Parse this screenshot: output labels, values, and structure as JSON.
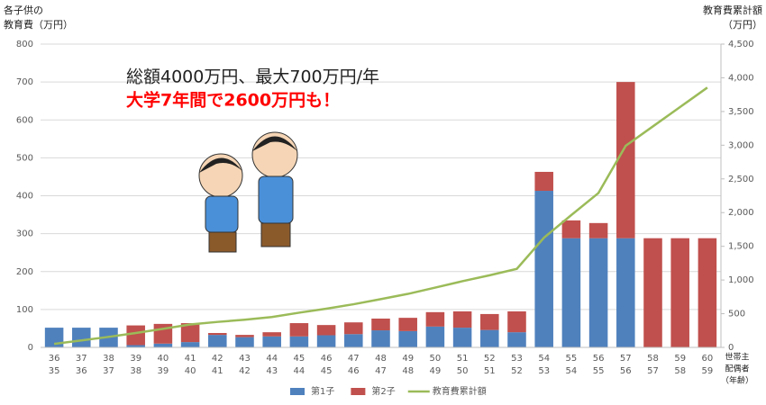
{
  "chart_data": {
    "type": "bar_line",
    "ylabel": [
      "各子供の",
      "教育費（万円）"
    ],
    "y2label": [
      "教育費累計額",
      "（万円）"
    ],
    "xlabel": [
      "世帯主",
      "配偶者",
      "（年齢）"
    ],
    "annotations": [
      {
        "text": "総額4000万円、最大700万円/年",
        "color": "#222222"
      },
      {
        "text": "大学7年間で2600万円も！",
        "color": "#ff0000"
      }
    ],
    "categories": [
      [
        "36",
        "35"
      ],
      [
        "37",
        "36"
      ],
      [
        "38",
        "37"
      ],
      [
        "39",
        "38"
      ],
      [
        "40",
        "39"
      ],
      [
        "41",
        "40"
      ],
      [
        "42",
        "41"
      ],
      [
        "43",
        "42"
      ],
      [
        "44",
        "43"
      ],
      [
        "45",
        "44"
      ],
      [
        "46",
        "45"
      ],
      [
        "47",
        "46"
      ],
      [
        "48",
        "47"
      ],
      [
        "49",
        "48"
      ],
      [
        "50",
        "49"
      ],
      [
        "51",
        "50"
      ],
      [
        "52",
        "51"
      ],
      [
        "53",
        "52"
      ],
      [
        "54",
        "53"
      ],
      [
        "55",
        "54"
      ],
      [
        "56",
        "55"
      ],
      [
        "57",
        "56"
      ],
      [
        "58",
        "57"
      ],
      [
        "59",
        "58"
      ],
      [
        "60",
        "59"
      ]
    ],
    "series": [
      {
        "name": "第1子",
        "type": "bar",
        "color": "#4f81bd",
        "values": [
          52,
          52,
          52,
          6,
          10,
          14,
          33,
          27,
          29,
          29,
          32,
          35,
          45,
          43,
          55,
          52,
          46,
          40,
          413,
          288,
          288,
          288,
          0,
          0,
          0
        ]
      },
      {
        "name": "第2子",
        "type": "bar",
        "color": "#c0504d",
        "values": [
          0,
          0,
          0,
          52,
          52,
          50,
          5,
          6,
          11,
          35,
          27,
          31,
          31,
          35,
          38,
          43,
          42,
          55,
          50,
          47,
          40,
          412,
          288,
          288,
          288
        ]
      },
      {
        "name": "教育費累計額",
        "type": "line",
        "axis": "y2",
        "color": "#9bbb59",
        "values": [
          52,
          104,
          156,
          214,
          276,
          340,
          378,
          411,
          451,
          515,
          574,
          640,
          716,
          794,
          887,
          982,
          1070,
          1165,
          1628,
          1963,
          2291,
          2991,
          3279,
          3567,
          3855
        ]
      }
    ],
    "ylim": [
      0,
      800
    ],
    "yticks": [
      0,
      100,
      200,
      300,
      400,
      500,
      600,
      700,
      800
    ],
    "y2lim": [
      0,
      4500
    ],
    "y2ticks": [
      0,
      500,
      {
        "value": 1000,
        "label": "1,000"
      },
      {
        "value": 1500,
        "label": "1,500"
      },
      {
        "value": 2000,
        "label": "2,000"
      },
      {
        "value": 2500,
        "label": "2,500"
      },
      {
        "value": 3000,
        "label": "3,000"
      },
      {
        "value": 3500,
        "label": "3,500"
      },
      {
        "value": 4000,
        "label": "4,000"
      },
      {
        "value": 4500,
        "label": "4,500"
      }
    ],
    "grid": true,
    "legend": "bottom"
  }
}
